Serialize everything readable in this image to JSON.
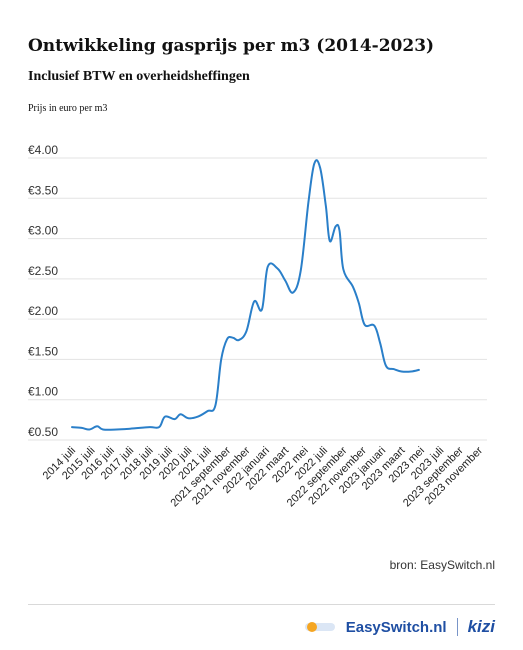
{
  "header": {
    "title": "Ontwikkeling gasprijs per m3 (2014-2023)",
    "subtitle": "Inclusief BTW en overheidsheffingen"
  },
  "source_label": "bron: EasySwitch.nl",
  "brand": {
    "name": "EasySwitch.nl",
    "partner": "kizi",
    "color": "#1f4fa3",
    "accent": "#f5a623"
  },
  "chart_data": {
    "type": "line",
    "ylabel": "Prijs in euro per m3",
    "ylim": [
      0.5,
      4.0
    ],
    "yticks": [
      {
        "value": 4.0,
        "label": "€4.00"
      },
      {
        "value": 3.5,
        "label": "€3.50"
      },
      {
        "value": 3.0,
        "label": "€3.00"
      },
      {
        "value": 2.5,
        "label": "€2.50"
      },
      {
        "value": 2.0,
        "label": "€2.00"
      },
      {
        "value": 1.5,
        "label": "€1.50"
      },
      {
        "value": 1.0,
        "label": "€1.00"
      },
      {
        "value": 0.5,
        "label": "€0.50"
      }
    ],
    "grid": true,
    "line_color": "#2a7fc9",
    "xlabels": [
      "2014 juli",
      "2015 juli",
      "2016 juli",
      "2017 juli",
      "2018 juli",
      "2019 juli",
      "2020 juli",
      "2021 juli",
      "2021 september",
      "2021 november",
      "2022 januari",
      "2022 maart",
      "2022 mei",
      "2022 juli",
      "2022 september",
      "2022 november",
      "2023 januari",
      "2023 maart",
      "2023 mei",
      "2023 juli",
      "2023 september",
      "2023 november"
    ],
    "series": [
      {
        "values": [
          [
            0.0,
            0.66
          ],
          [
            0.5,
            0.65
          ],
          [
            0.9,
            0.63
          ],
          [
            1.3,
            0.67
          ],
          [
            1.6,
            0.63
          ],
          [
            2.3,
            0.63
          ],
          [
            3.0,
            0.64
          ],
          [
            4.0,
            0.66
          ],
          [
            4.5,
            0.66
          ],
          [
            4.8,
            0.79
          ],
          [
            5.3,
            0.76
          ],
          [
            5.6,
            0.82
          ],
          [
            6.0,
            0.77
          ],
          [
            6.5,
            0.79
          ],
          [
            7.0,
            0.86
          ],
          [
            7.4,
            0.93
          ],
          [
            7.7,
            1.5
          ],
          [
            8.0,
            1.75
          ],
          [
            8.3,
            1.77
          ],
          [
            8.6,
            1.74
          ],
          [
            9.0,
            1.85
          ],
          [
            9.4,
            2.22
          ],
          [
            9.8,
            2.12
          ],
          [
            10.1,
            2.65
          ],
          [
            10.6,
            2.63
          ],
          [
            11.0,
            2.48
          ],
          [
            11.4,
            2.33
          ],
          [
            11.8,
            2.6
          ],
          [
            12.2,
            3.45
          ],
          [
            12.5,
            3.93
          ],
          [
            12.8,
            3.88
          ],
          [
            13.1,
            3.4
          ],
          [
            13.3,
            2.97
          ],
          [
            13.6,
            3.15
          ],
          [
            13.8,
            3.1
          ],
          [
            14.0,
            2.62
          ],
          [
            14.5,
            2.4
          ],
          [
            14.8,
            2.2
          ],
          [
            15.1,
            1.93
          ],
          [
            15.6,
            1.92
          ],
          [
            15.9,
            1.7
          ],
          [
            16.2,
            1.42
          ],
          [
            16.6,
            1.38
          ],
          [
            17.0,
            1.35
          ],
          [
            17.5,
            1.35
          ],
          [
            17.9,
            1.37
          ]
        ]
      }
    ]
  }
}
